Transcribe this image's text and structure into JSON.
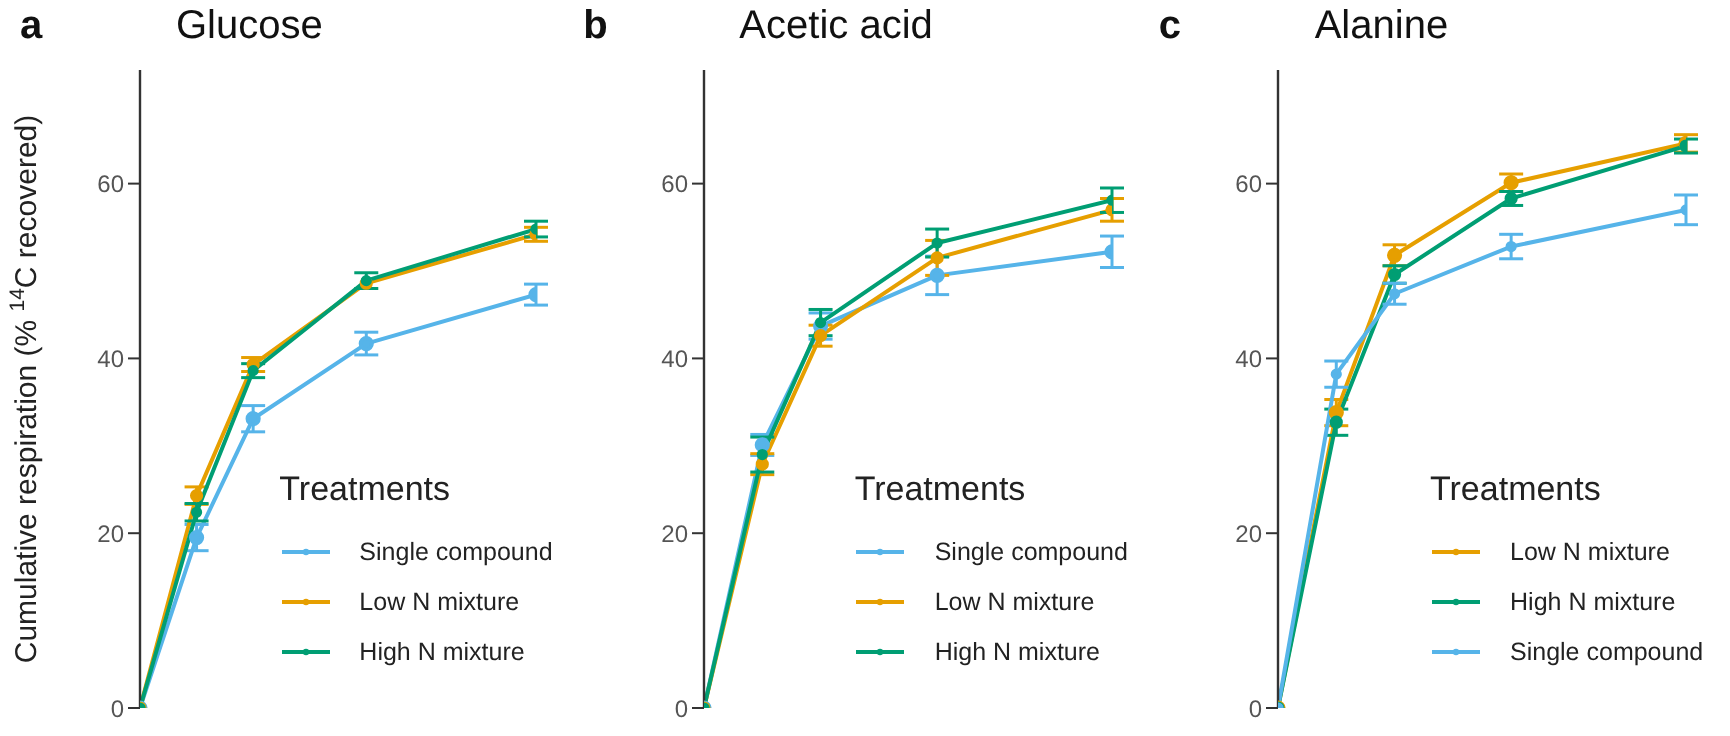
{
  "chart_data": [
    {
      "type": "line",
      "title": "Glucose",
      "annotations": [
        "a"
      ],
      "ylabel": "Cumulative respiration (% $^{14}$C recovered)",
      "legend_title": "Treatments",
      "legend": "bottom right",
      "marker": "circle",
      "line_style": "solid",
      "tick_labels": "y",
      "categories": [
        null,
        null,
        null,
        null,
        null,
        null,
        null,
        null
      ],
      "ylim": [
        0,
        73
      ],
      "yticks": [
        0,
        20,
        40,
        60
      ],
      "series": [
        {
          "name": "Single compound",
          "color": "#56b4e9",
          "values": [
            0,
            19.5,
            33.1,
            null,
            41.7,
            null,
            null,
            47.3
          ],
          "errors": [
            null,
            1.5,
            1.5,
            null,
            1.3,
            null,
            null,
            1.2
          ]
        },
        {
          "name": "Low N mixture",
          "color": "#e69f00",
          "values": [
            0,
            24.3,
            39.3,
            null,
            48.6,
            null,
            null,
            54.2
          ],
          "errors": [
            null,
            1,
            0.8,
            null,
            null,
            null,
            null,
            0.8
          ]
        },
        {
          "name": "High N mixture",
          "color": "#009e73",
          "values": [
            0,
            22.4,
            38.6,
            null,
            48.9,
            null,
            null,
            54.8
          ],
          "errors": [
            null,
            1,
            0.8,
            null,
            0.9,
            null,
            null,
            0.9
          ]
        }
      ]
    },
    {
      "type": "line",
      "title": "Acetic acid",
      "annotations": [
        "b"
      ],
      "legend_title": "Treatments",
      "legend": "bottom right",
      "marker": "circle",
      "line_style": "solid",
      "tick_labels": "y",
      "categories": [
        null,
        null,
        null,
        null,
        null,
        null,
        null,
        null
      ],
      "ylim": [
        0,
        73
      ],
      "yticks": [
        0,
        20,
        40,
        60
      ],
      "series": [
        {
          "name": "Single compound",
          "color": "#56b4e9",
          "values": [
            0,
            30.1,
            43.7,
            null,
            49.5,
            null,
            null,
            52.2
          ],
          "errors": [
            null,
            1.2,
            1.5,
            null,
            2.2,
            null,
            null,
            1.8
          ]
        },
        {
          "name": "Low N mixture",
          "color": "#e69f00",
          "values": [
            0,
            27.9,
            42.6,
            null,
            51.5,
            null,
            null,
            57.0
          ],
          "errors": [
            null,
            1.2,
            1.2,
            null,
            2.0,
            null,
            null,
            1.3
          ]
        },
        {
          "name": "High N mixture",
          "color": "#009e73",
          "values": [
            0,
            29.0,
            44.1,
            null,
            53.2,
            null,
            null,
            58.1
          ],
          "errors": [
            null,
            2.0,
            1.5,
            null,
            1.6,
            null,
            null,
            1.4
          ]
        }
      ]
    },
    {
      "type": "line",
      "title": "Alanine",
      "annotations": [
        "c"
      ],
      "legend_title": "Treatments",
      "legend": "bottom right",
      "marker": "circle",
      "line_style": "solid",
      "tick_labels": "y",
      "categories": [
        null,
        null,
        null,
        null,
        null,
        null,
        null,
        null
      ],
      "ylim": [
        0,
        73
      ],
      "yticks": [
        0,
        20,
        40,
        60
      ],
      "series": [
        {
          "name": "Low N mixture",
          "color": "#e69f00",
          "values": [
            0,
            33.8,
            51.8,
            null,
            60.1,
            null,
            null,
            64.6
          ],
          "errors": [
            null,
            1.5,
            1.2,
            null,
            1,
            null,
            null,
            1
          ]
        },
        {
          "name": "High N mixture",
          "color": "#009e73",
          "values": [
            0,
            32.7,
            49.6,
            null,
            58.3,
            null,
            null,
            64.3
          ],
          "errors": [
            null,
            1.5,
            1,
            null,
            0.8,
            null,
            null,
            0.8
          ]
        },
        {
          "name": "Single compound",
          "color": "#56b4e9",
          "values": [
            0,
            38.2,
            47.4,
            null,
            52.8,
            null,
            null,
            57.0
          ],
          "errors": [
            null,
            1.5,
            1.2,
            null,
            1.4,
            null,
            null,
            1.7
          ]
        }
      ]
    }
  ]
}
